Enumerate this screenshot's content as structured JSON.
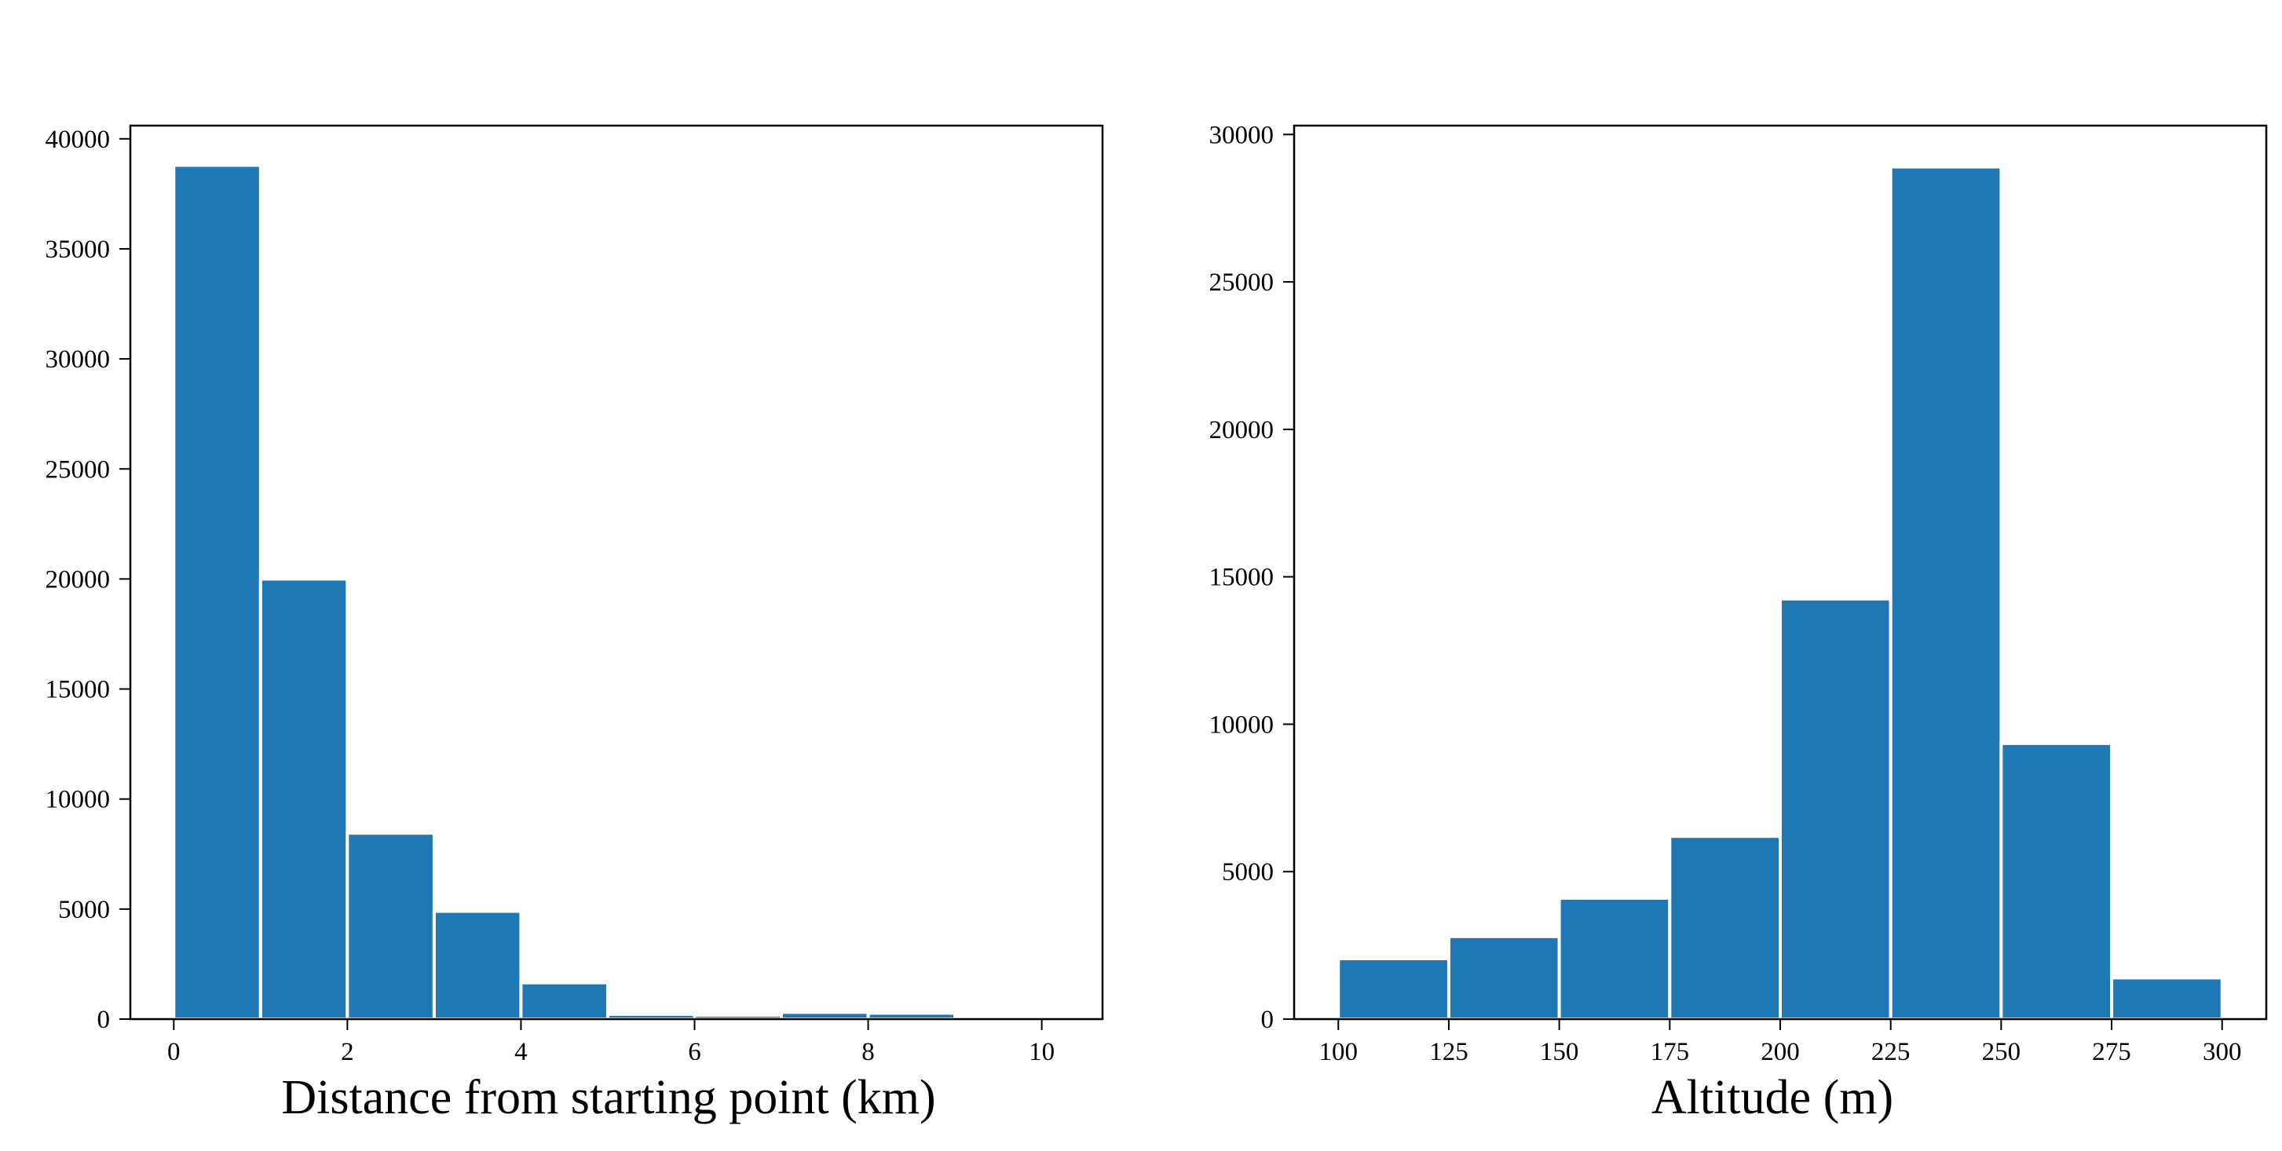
{
  "chart_data": [
    {
      "type": "bar",
      "xlabel": "Distance from starting point (km)",
      "ylabel": "",
      "title": "",
      "bins": [
        {
          "x0": 0,
          "x1": 1,
          "value": 38800
        },
        {
          "x0": 1,
          "x1": 2,
          "value": 20000
        },
        {
          "x0": 2,
          "x1": 3,
          "value": 8450
        },
        {
          "x0": 3,
          "x1": 4,
          "value": 4900
        },
        {
          "x0": 4,
          "x1": 5,
          "value": 1650
        },
        {
          "x0": 5,
          "x1": 6,
          "value": 220
        },
        {
          "x0": 6,
          "x1": 7,
          "value": 180
        },
        {
          "x0": 7,
          "x1": 8,
          "value": 310
        },
        {
          "x0": 8,
          "x1": 9,
          "value": 270
        },
        {
          "x0": 9,
          "x1": 10.2,
          "value": 60
        }
      ],
      "xlim": [
        -0.5,
        10.7
      ],
      "ylim": [
        0,
        40600
      ],
      "xticks": [
        0,
        2,
        4,
        6,
        8,
        10
      ],
      "xtick_labels": [
        "0",
        "2",
        "4",
        "6",
        "8",
        "10"
      ],
      "yticks": [
        0,
        5000,
        10000,
        15000,
        20000,
        25000,
        30000,
        35000,
        40000
      ],
      "ytick_labels": [
        "0",
        "5000",
        "10000",
        "15000",
        "20000",
        "25000",
        "30000",
        "35000",
        "40000"
      ],
      "grid": false,
      "color": "#1f77b4"
    },
    {
      "type": "bar",
      "xlabel": "Altitude (m)",
      "ylabel": "",
      "title": "",
      "bins": [
        {
          "x0": 100,
          "x1": 125,
          "value": 2050
        },
        {
          "x0": 125,
          "x1": 150,
          "value": 2800
        },
        {
          "x0": 150,
          "x1": 175,
          "value": 4100
        },
        {
          "x0": 175,
          "x1": 200,
          "value": 6200
        },
        {
          "x0": 200,
          "x1": 225,
          "value": 14250
        },
        {
          "x0": 225,
          "x1": 250,
          "value": 28900
        },
        {
          "x0": 250,
          "x1": 275,
          "value": 9350
        },
        {
          "x0": 275,
          "x1": 300,
          "value": 1400
        }
      ],
      "xlim": [
        90,
        310
      ],
      "ylim": [
        0,
        30300
      ],
      "xticks": [
        100,
        125,
        150,
        175,
        200,
        225,
        250,
        275,
        300
      ],
      "xtick_labels": [
        "100",
        "125",
        "150",
        "175",
        "200",
        "225",
        "250",
        "275",
        "300"
      ],
      "yticks": [
        0,
        5000,
        10000,
        15000,
        20000,
        25000,
        30000
      ],
      "ytick_labels": [
        "0",
        "5000",
        "10000",
        "15000",
        "20000",
        "25000",
        "30000"
      ],
      "grid": false,
      "color": "#1f77b4"
    }
  ]
}
